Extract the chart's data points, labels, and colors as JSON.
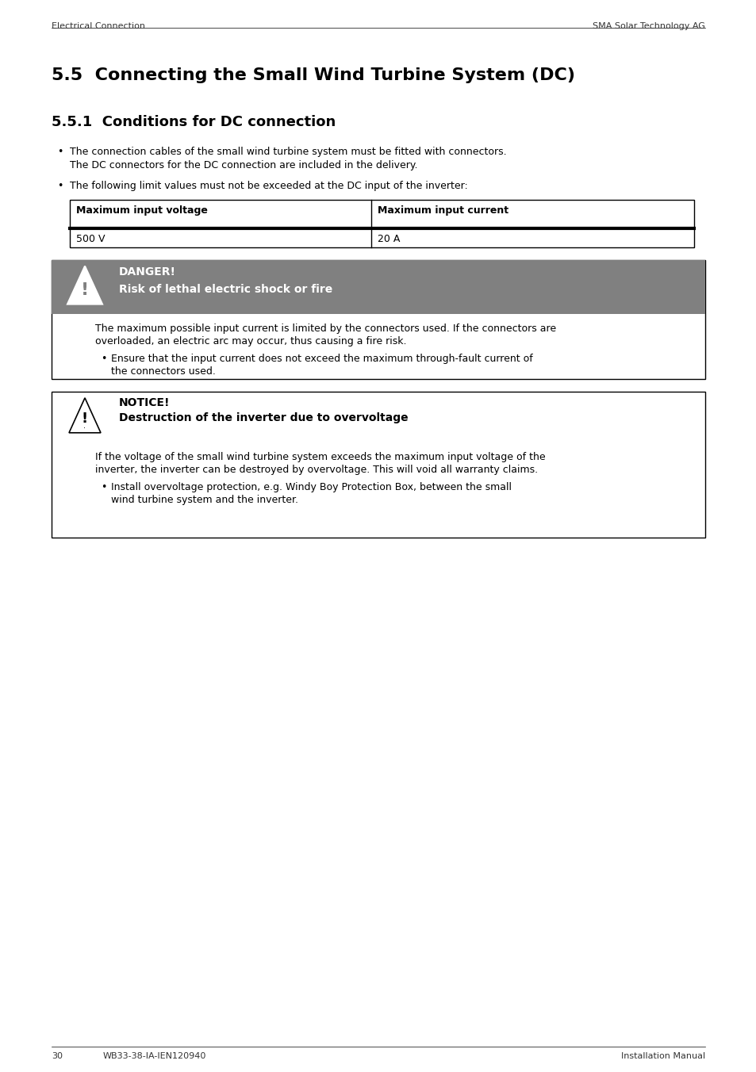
{
  "page_bg": "#ffffff",
  "header_left": "Electrical Connection",
  "header_right": "SMA Solar Technology AG",
  "section_title": "5.5  Connecting the Small Wind Turbine System (DC)",
  "subsection_title": "5.5.1  Conditions for DC connection",
  "bullet1_line1": "The connection cables of the small wind turbine system must be fitted with connectors.",
  "bullet1_line2": "The DC connectors for the DC connection are included in the delivery.",
  "bullet2": "The following limit values must not be exceeded at the DC input of the inverter:",
  "table_col1_header": "Maximum input voltage",
  "table_col2_header": "Maximum input current",
  "table_col1_val": "500 V",
  "table_col2_val": "20 A",
  "danger_label": "DANGER!",
  "danger_subtitle": "Risk of lethal electric shock or fire",
  "danger_bg": "#808080",
  "danger_text1": "The maximum possible input current is limited by the connectors used. If the connectors are",
  "danger_text2": "overloaded, an electric arc may occur, thus causing a fire risk.",
  "notice_label": "NOTICE!",
  "notice_subtitle": "Destruction of the inverter due to overvoltage",
  "notice_text1": "If the voltage of the small wind turbine system exceeds the maximum input voltage of the",
  "notice_text2": "inverter, the inverter can be destroyed by overvoltage. This will void all warranty claims.",
  "footer_left_num": "30",
  "footer_left_code": "WB33-38-IA-IEN120940",
  "footer_right": "Installation Manual"
}
